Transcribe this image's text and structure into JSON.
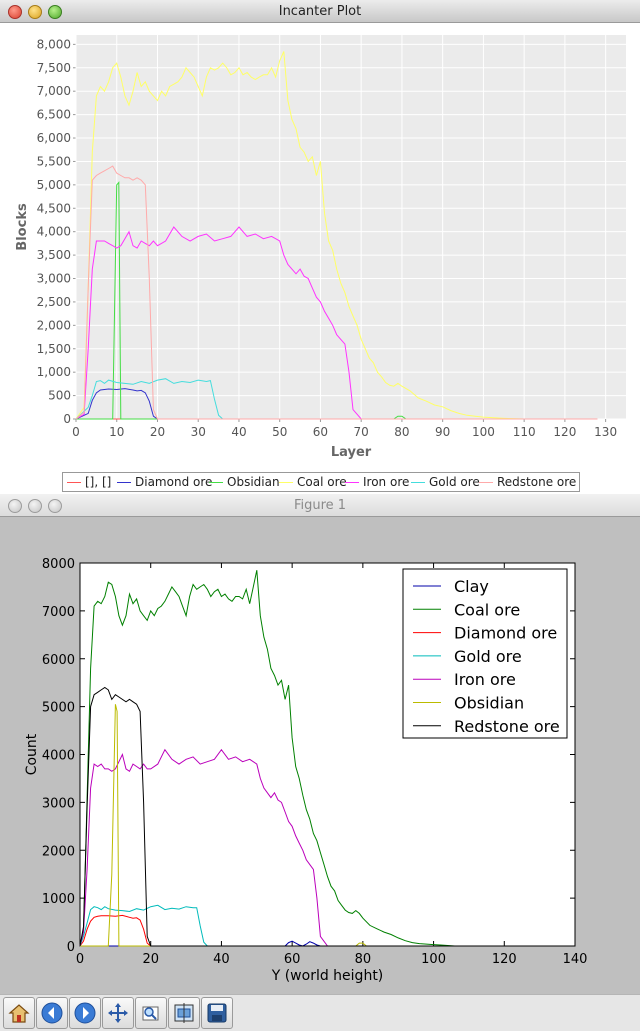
{
  "windows": {
    "top_title": "Incanter Plot",
    "bottom_title": "Figure 1"
  },
  "icons": [
    "home-icon",
    "back-icon",
    "forward-icon",
    "pan-icon",
    "zoom-icon",
    "subplots-icon",
    "save-icon"
  ],
  "chart_data": [
    {
      "type": "line",
      "xlabel": "Layer",
      "ylabel": "Blocks",
      "xlim": [
        0,
        135
      ],
      "ylim": [
        0,
        8200
      ],
      "xticks": [
        "0",
        "10",
        "20",
        "30",
        "40",
        "50",
        "60",
        "70",
        "80",
        "90",
        "100",
        "110",
        "120",
        "130"
      ],
      "yticks": [
        "0",
        "500",
        "1,000",
        "1,500",
        "2,000",
        "2,500",
        "3,000",
        "3,500",
        "4,000",
        "4,500",
        "5,000",
        "5,500",
        "6,000",
        "6,500",
        "7,000",
        "7,500",
        "8,000"
      ],
      "legend_position": "bottom",
      "grid": true,
      "series": [
        {
          "name": "[], []",
          "color": "#ff5555",
          "x": [
            0,
            128
          ],
          "y": [
            0,
            0
          ]
        },
        {
          "name": "Diamond ore",
          "color": "#3333cc",
          "x": [
            0,
            3,
            4,
            5,
            6,
            8,
            10,
            12,
            14,
            15,
            16,
            17,
            18,
            19,
            20,
            128
          ],
          "y": [
            0,
            120,
            400,
            560,
            620,
            640,
            630,
            650,
            620,
            600,
            610,
            560,
            380,
            60,
            0,
            0
          ]
        },
        {
          "name": "Obsidian",
          "color": "#44dd44",
          "x": [
            0,
            9,
            10,
            10.5,
            11,
            12,
            20,
            78,
            79,
            80,
            81,
            128
          ],
          "y": [
            0,
            0,
            5000,
            5050,
            0,
            0,
            0,
            0,
            60,
            60,
            0,
            0
          ]
        },
        {
          "name": "Coal ore",
          "color": "#ffff66",
          "x": [
            0,
            2,
            3,
            4,
            5,
            6,
            7,
            8,
            9,
            10,
            11,
            12,
            13,
            14,
            15,
            16,
            17,
            18,
            19,
            20,
            21,
            22,
            23,
            24,
            25,
            26,
            27,
            28,
            29,
            30,
            31,
            32,
            33,
            34,
            35,
            36,
            37,
            38,
            39,
            40,
            41,
            42,
            43,
            44,
            45,
            46,
            47,
            48,
            49,
            50,
            51,
            52,
            53,
            54,
            55,
            56,
            57,
            58,
            59,
            60,
            61,
            62,
            63,
            64,
            65,
            66,
            67,
            68,
            69,
            70,
            71,
            72,
            73,
            74,
            75,
            76,
            77,
            78,
            79,
            80,
            82,
            84,
            86,
            88,
            90,
            92,
            94,
            96,
            98,
            100,
            102,
            104,
            106,
            108,
            110,
            128
          ],
          "y": [
            0,
            250,
            2800,
            5700,
            6900,
            7100,
            7000,
            7200,
            7500,
            7600,
            7300,
            6900,
            6700,
            7000,
            7400,
            7100,
            7200,
            7000,
            6900,
            6800,
            7000,
            6900,
            7100,
            7150,
            7200,
            7300,
            7500,
            7400,
            7300,
            7100,
            6900,
            7300,
            7500,
            7450,
            7500,
            7600,
            7500,
            7350,
            7400,
            7500,
            7350,
            7400,
            7300,
            7250,
            7300,
            7350,
            7350,
            7500,
            7300,
            7650,
            7850,
            6800,
            6400,
            6200,
            5800,
            5700,
            5500,
            5600,
            5200,
            5500,
            4400,
            3800,
            3600,
            3200,
            2900,
            2700,
            2400,
            2200,
            2000,
            1700,
            1500,
            1300,
            1200,
            1000,
            900,
            780,
            720,
            700,
            760,
            700,
            600,
            450,
            380,
            300,
            260,
            180,
            120,
            80,
            60,
            40,
            30,
            20,
            10,
            5,
            0,
            0
          ]
        },
        {
          "name": "Iron ore",
          "color": "#ff33ff",
          "x": [
            0,
            2,
            3,
            4,
            5,
            6,
            7,
            8,
            9,
            10,
            11,
            12,
            13,
            14,
            15,
            16,
            17,
            18,
            19,
            20,
            22,
            24,
            26,
            28,
            30,
            32,
            34,
            36,
            38,
            40,
            42,
            44,
            46,
            48,
            50,
            51,
            52,
            53,
            54,
            55,
            56,
            57,
            58,
            59,
            60,
            61,
            62,
            63,
            64,
            65,
            66,
            67,
            68,
            70,
            128
          ],
          "y": [
            0,
            100,
            1500,
            3200,
            3800,
            3800,
            3800,
            3750,
            3700,
            3650,
            3700,
            3850,
            4000,
            3700,
            3650,
            3800,
            3750,
            3700,
            3800,
            3700,
            3800,
            4100,
            3900,
            3800,
            3900,
            3950,
            3800,
            3850,
            3900,
            4100,
            3900,
            3950,
            3850,
            3900,
            3800,
            3500,
            3300,
            3200,
            3100,
            3200,
            3050,
            3000,
            2800,
            2600,
            2500,
            2300,
            2150,
            2000,
            1800,
            1700,
            1600,
            1000,
            200,
            0,
            0
          ]
        },
        {
          "name": "Gold ore",
          "color": "#44dddd",
          "x": [
            0,
            3,
            4,
            5,
            6,
            7,
            8,
            10,
            12,
            14,
            16,
            18,
            20,
            22,
            24,
            26,
            28,
            30,
            32,
            33,
            34,
            35,
            36,
            128
          ],
          "y": [
            0,
            250,
            500,
            800,
            820,
            760,
            830,
            780,
            760,
            740,
            800,
            760,
            830,
            860,
            760,
            800,
            780,
            830,
            800,
            820,
            420,
            80,
            0,
            0
          ]
        },
        {
          "name": "Redstone ore",
          "color": "#ffaaaa",
          "x": [
            0,
            2,
            3,
            4,
            5,
            6,
            7,
            8,
            9,
            10,
            11,
            12,
            13,
            14,
            15,
            16,
            17,
            18,
            19,
            20,
            128
          ],
          "y": [
            0,
            150,
            2800,
            5100,
            5200,
            5250,
            5300,
            5350,
            5400,
            5250,
            5200,
            5150,
            5150,
            5100,
            5150,
            5100,
            5000,
            3000,
            200,
            0,
            0
          ]
        }
      ]
    },
    {
      "type": "line",
      "xlabel": "Y (world height)",
      "ylabel": "Count",
      "xlim": [
        0,
        140
      ],
      "ylim": [
        0,
        8000
      ],
      "xticks": [
        "0",
        "20",
        "40",
        "60",
        "80",
        "100",
        "120",
        "140"
      ],
      "yticks": [
        "0",
        "1000",
        "2000",
        "3000",
        "4000",
        "5000",
        "6000",
        "7000",
        "8000"
      ],
      "legend_position": "top-right",
      "grid": false,
      "series": [
        {
          "name": "Clay",
          "color": "#0000aa",
          "x": [
            0,
            58,
            59,
            60,
            61,
            62,
            63,
            64,
            65,
            66,
            67,
            68,
            140
          ],
          "y": [
            0,
            0,
            70,
            100,
            60,
            20,
            0,
            40,
            90,
            60,
            20,
            0,
            0
          ]
        },
        {
          "name": "Coal ore",
          "color": "#008000",
          "x": [
            0,
            1,
            2,
            3,
            4,
            5,
            6,
            7,
            8,
            9,
            10,
            11,
            12,
            13,
            14,
            15,
            16,
            17,
            18,
            19,
            20,
            21,
            22,
            23,
            24,
            25,
            26,
            27,
            28,
            29,
            30,
            31,
            32,
            33,
            34,
            35,
            36,
            37,
            38,
            39,
            40,
            41,
            42,
            43,
            44,
            45,
            46,
            47,
            48,
            49,
            50,
            51,
            52,
            53,
            54,
            55,
            56,
            57,
            58,
            59,
            60,
            61,
            62,
            63,
            64,
            65,
            66,
            67,
            68,
            69,
            70,
            71,
            72,
            73,
            74,
            75,
            76,
            77,
            78,
            79,
            80,
            82,
            84,
            86,
            88,
            90,
            92,
            94,
            96,
            98,
            100,
            102,
            104,
            106,
            140
          ],
          "y": [
            0,
            300,
            3100,
            5800,
            7100,
            7200,
            7150,
            7300,
            7600,
            7550,
            7300,
            6900,
            6700,
            6900,
            7350,
            7150,
            7250,
            7000,
            6900,
            6800,
            7000,
            6900,
            7050,
            7100,
            7200,
            7350,
            7500,
            7400,
            7300,
            7100,
            6900,
            7300,
            7550,
            7450,
            7500,
            7550,
            7450,
            7300,
            7400,
            7450,
            7300,
            7350,
            7250,
            7200,
            7300,
            7300,
            7250,
            7450,
            7150,
            7500,
            7850,
            6900,
            6450,
            6200,
            5800,
            5650,
            5450,
            5550,
            5150,
            5450,
            4350,
            3750,
            3500,
            3150,
            2850,
            2650,
            2350,
            2200,
            1950,
            1700,
            1450,
            1250,
            1150,
            950,
            850,
            750,
            700,
            680,
            740,
            680,
            580,
            430,
            360,
            290,
            240,
            170,
            110,
            70,
            50,
            40,
            30,
            20,
            10,
            0,
            0
          ]
        },
        {
          "name": "Diamond ore",
          "color": "#ff0000",
          "x": [
            0,
            1,
            2,
            3,
            4,
            5,
            6,
            8,
            10,
            12,
            14,
            15,
            16,
            17,
            18,
            19,
            20,
            140
          ],
          "y": [
            0,
            100,
            350,
            520,
            600,
            620,
            630,
            630,
            620,
            640,
            600,
            580,
            590,
            540,
            350,
            60,
            0,
            0
          ]
        },
        {
          "name": "Gold ore",
          "color": "#00bbbb",
          "x": [
            0,
            1,
            2,
            3,
            4,
            5,
            6,
            7,
            8,
            10,
            12,
            14,
            16,
            18,
            20,
            22,
            24,
            26,
            28,
            30,
            32,
            33,
            34,
            35,
            36,
            140
          ],
          "y": [
            0,
            200,
            480,
            760,
            820,
            800,
            760,
            820,
            780,
            750,
            740,
            720,
            780,
            750,
            820,
            850,
            760,
            790,
            770,
            820,
            800,
            800,
            420,
            80,
            0,
            0
          ]
        },
        {
          "name": "Iron ore",
          "color": "#bb00bb",
          "x": [
            0,
            1,
            2,
            3,
            4,
            5,
            6,
            7,
            8,
            9,
            10,
            11,
            12,
            13,
            14,
            15,
            16,
            17,
            18,
            19,
            20,
            22,
            24,
            26,
            28,
            30,
            32,
            34,
            36,
            38,
            40,
            42,
            44,
            46,
            48,
            50,
            51,
            52,
            53,
            54,
            55,
            56,
            57,
            58,
            59,
            60,
            61,
            62,
            63,
            64,
            65,
            66,
            67,
            68,
            70,
            140
          ],
          "y": [
            0,
            300,
            1600,
            3300,
            3800,
            3750,
            3800,
            3700,
            3700,
            3650,
            3700,
            3850,
            4000,
            3700,
            3650,
            3800,
            3750,
            3700,
            3800,
            3700,
            3700,
            3800,
            4100,
            3900,
            3800,
            3900,
            3950,
            3800,
            3850,
            3900,
            4100,
            3900,
            3950,
            3850,
            3900,
            3800,
            3500,
            3300,
            3200,
            3100,
            3200,
            3050,
            3000,
            2800,
            2600,
            2500,
            2300,
            2150,
            2000,
            1800,
            1700,
            1600,
            1000,
            200,
            0,
            0
          ]
        },
        {
          "name": "Obsidian",
          "color": "#bbbb00",
          "x": [
            0,
            8,
            9,
            10,
            10.5,
            11,
            12,
            78,
            79,
            80,
            81,
            140
          ],
          "y": [
            0,
            0,
            1500,
            5050,
            4900,
            0,
            0,
            0,
            60,
            60,
            0,
            0
          ]
        },
        {
          "name": "Redstone ore",
          "color": "#000000",
          "x": [
            0,
            1,
            2,
            3,
            4,
            5,
            6,
            7,
            8,
            9,
            10,
            11,
            12,
            13,
            14,
            15,
            16,
            17,
            18,
            19,
            20,
            140
          ],
          "y": [
            0,
            400,
            2900,
            5000,
            5250,
            5300,
            5350,
            5400,
            5350,
            5150,
            5250,
            5200,
            5150,
            5100,
            5150,
            5100,
            5050,
            4900,
            3000,
            200,
            0,
            0
          ]
        }
      ]
    }
  ]
}
